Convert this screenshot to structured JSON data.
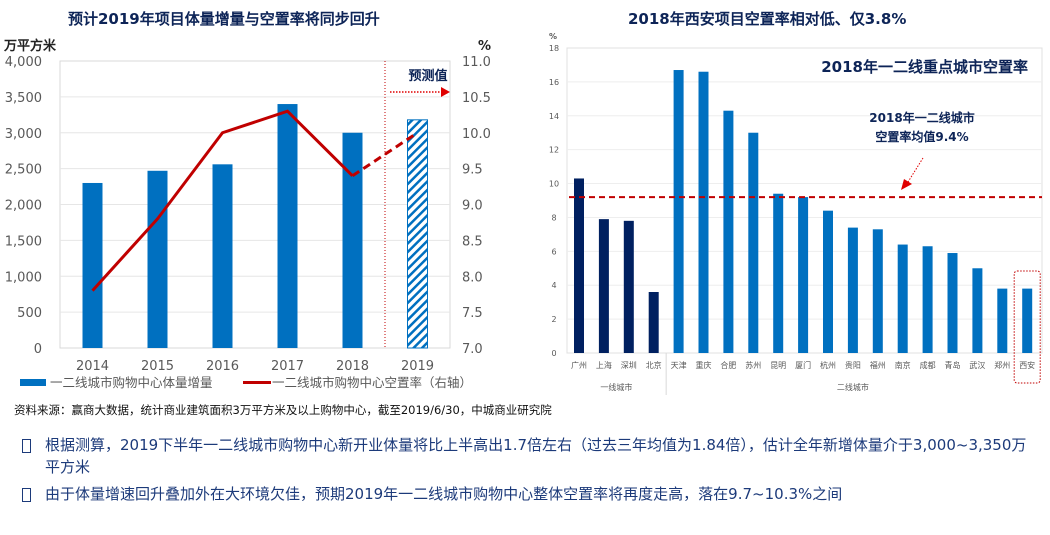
{
  "chart_data": [
    {
      "type": "bar+line",
      "title": "预计2019年项目体量增量与空置率将同步回升",
      "ylabel_left": "万平方米",
      "ylabel_right": "%",
      "categories": [
        "2014",
        "2015",
        "2016",
        "2017",
        "2018",
        "2019"
      ],
      "ylim_left": [
        0,
        4000
      ],
      "yticks_left": [
        "0",
        "500",
        "1,000",
        "1,500",
        "2,000",
        "2,500",
        "3,000",
        "3,500",
        "4,000"
      ],
      "ylim_right": [
        7.0,
        11.0
      ],
      "yticks_right": [
        "7.0",
        "7.5",
        "8.0",
        "8.5",
        "9.0",
        "9.5",
        "10.0",
        "10.5",
        "11.0"
      ],
      "grid": true,
      "forecast_label": "预测值",
      "forecast_from": "2019",
      "series": [
        {
          "name": "一二线城市购物中心体量增量",
          "type": "bar",
          "axis": "left",
          "values": [
            2300,
            2470,
            2560,
            3400,
            3000,
            3180
          ],
          "color": "#0070c0",
          "forecast_pattern": "hatched"
        },
        {
          "name": "一二线城市购物中心空置率（右轴）",
          "type": "line",
          "axis": "right",
          "values": [
            7.8,
            8.8,
            10.0,
            10.3,
            9.4,
            10.0
          ],
          "color": "#c00000",
          "forecast_style": "dashed"
        }
      ],
      "legend": "bottom"
    },
    {
      "type": "bar",
      "title": "2018年西安项目空置率相对低、仅3.8%",
      "inner_title": "2018年一二线重点城市空置率",
      "ylabel": "%",
      "ylim": [
        0,
        18
      ],
      "yticks": [
        "0",
        "2",
        "4",
        "6",
        "8",
        "10",
        "12",
        "14",
        "16",
        "18"
      ],
      "grid": true,
      "categories": [
        "广州",
        "上海",
        "深圳",
        "北京",
        "天津",
        "重庆",
        "合肥",
        "苏州",
        "昆明",
        "厦门",
        "杭州",
        "贵阳",
        "福州",
        "南京",
        "成都",
        "青岛",
        "武汉",
        "郑州",
        "西安"
      ],
      "values": [
        10.3,
        7.9,
        7.8,
        3.6,
        16.7,
        16.6,
        14.3,
        13.0,
        9.4,
        9.2,
        8.4,
        7.4,
        7.3,
        6.4,
        6.3,
        5.9,
        5.0,
        3.8,
        3.8
      ],
      "groups": [
        {
          "label": "一线城市",
          "count": 4,
          "color": "#002060"
        },
        {
          "label": "二线城市",
          "count": 15,
          "color": "#0070c0"
        }
      ],
      "reference_line": {
        "value": 9.4,
        "label_line1": "2018年一二线城市",
        "label_line2": "空置率均值9.4%",
        "color": "#c00000",
        "style": "dashed"
      },
      "highlight": "西安"
    }
  ],
  "source": "资料来源：赢商大数据，统计商业建筑面积3万平方米及以上购物中心，截至2019/6/30，中城商业研究院",
  "bullets": [
    "根据测算，2019下半年一二线城市购物中心新开业体量将比上半高出1.7倍左右（过去三年均值为1.84倍），估计全年新增体量介于3,000~3,350万平方米",
    "由于体量增速回升叠加外在大环境欠佳，预期2019年一二线城市购物中心整体空置率将再度走高，落在9.7~10.3%之间"
  ]
}
